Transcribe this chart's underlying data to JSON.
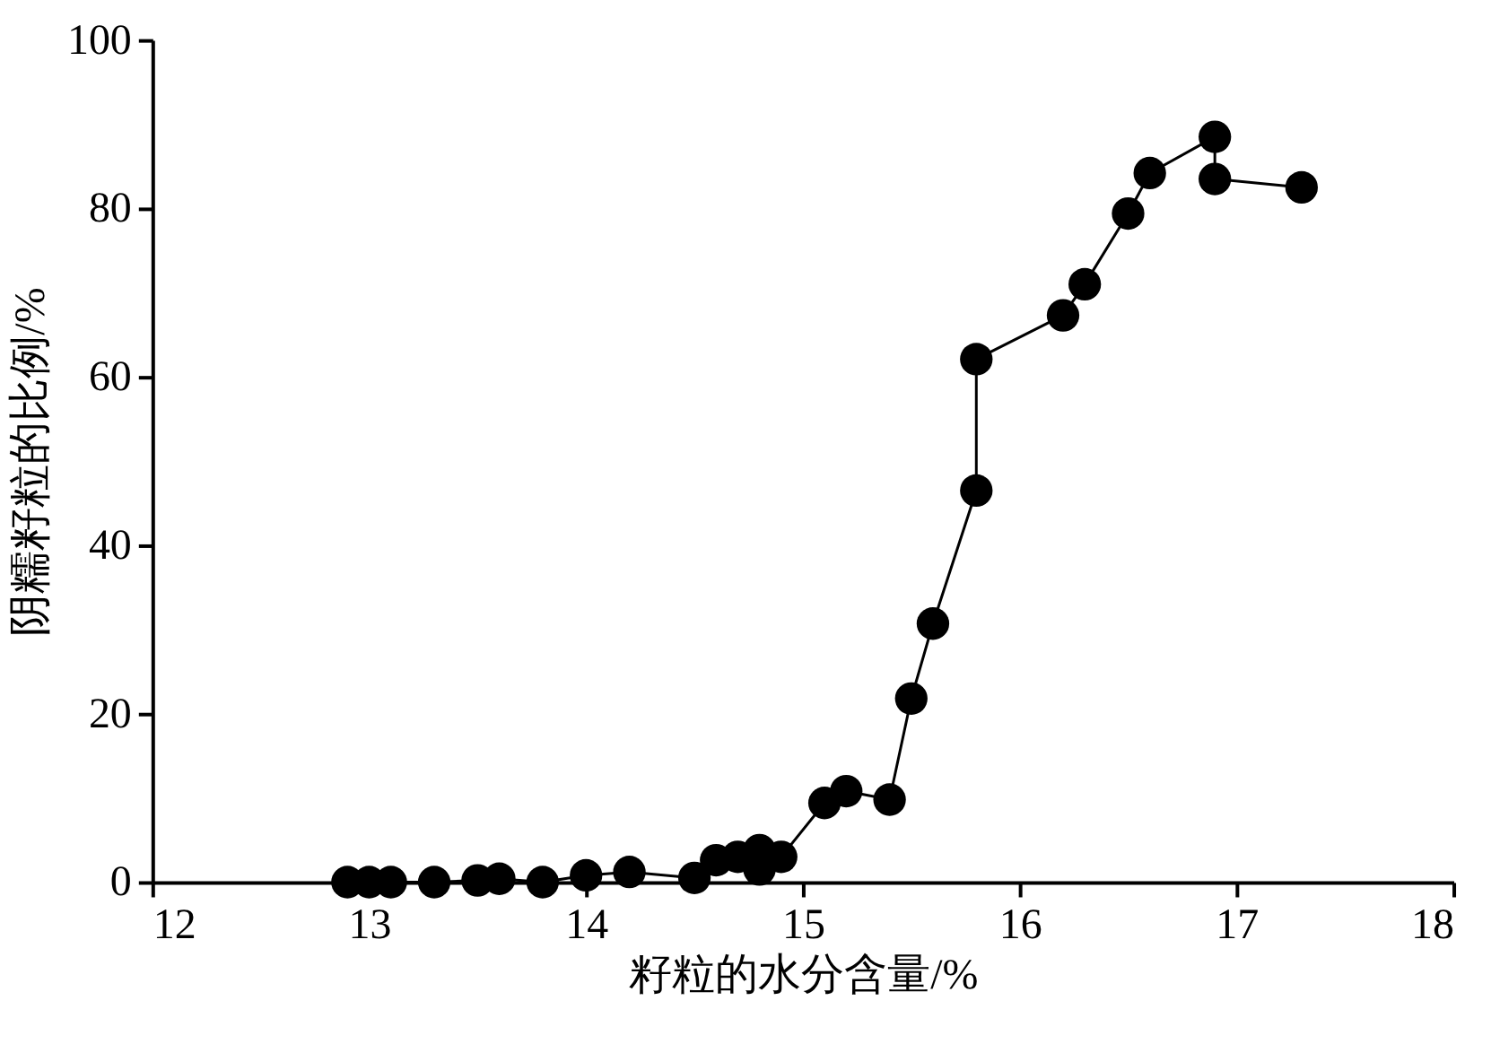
{
  "chart_data": {
    "type": "line",
    "xlabel": "籽粒的水分含量/%",
    "ylabel": "阴糯籽粒的比例/%",
    "x": [
      12.9,
      13.0,
      13.1,
      13.3,
      13.5,
      13.6,
      13.8,
      14.0,
      14.2,
      14.5,
      14.6,
      14.7,
      14.8,
      14.8,
      14.9,
      15.1,
      15.2,
      15.4,
      15.5,
      15.6,
      15.8,
      15.8,
      16.2,
      16.3,
      16.5,
      16.6,
      16.9,
      16.9,
      17.3
    ],
    "series": [
      {
        "color": "#000000",
        "values": [
          0,
          0,
          0,
          0,
          0.2,
          0.4,
          0,
          0.8,
          1.2,
          0.5,
          2.6,
          3.0,
          3.8,
          1.5,
          3.0,
          9.4,
          10.8,
          9.8,
          21.8,
          30.7,
          46.5,
          62.1,
          67.3,
          71.0,
          79.4,
          84.2,
          88.5,
          83.5,
          82.5
        ]
      }
    ],
    "xlim": [
      12,
      18
    ],
    "xticks": [
      12,
      13,
      14,
      15,
      16,
      17,
      18
    ],
    "ylim": [
      0,
      100
    ],
    "yticks": [
      0,
      20,
      40,
      60,
      80,
      100
    ],
    "marker": "circle",
    "line_style": "solid",
    "grid": false
  }
}
